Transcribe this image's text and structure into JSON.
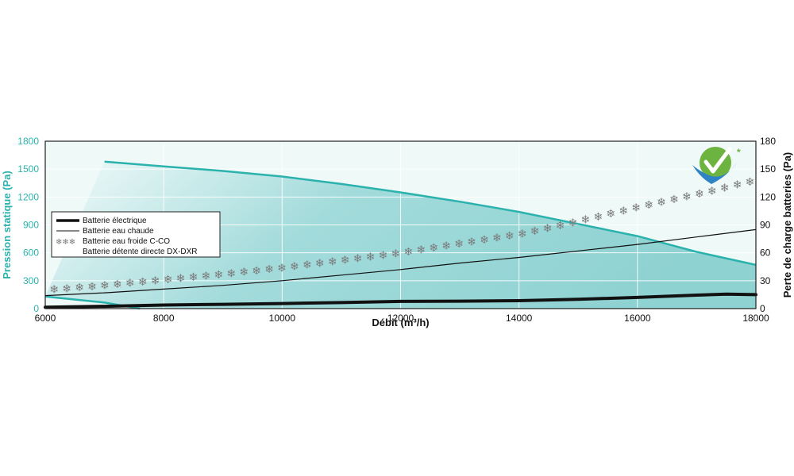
{
  "colors": {
    "left_axis": "#2bb2ad",
    "fill": "#a3dbdb",
    "fill_light": "#eef9f8",
    "black": "#111111",
    "grid": "#ffffff",
    "logo_green": "#6cb33f",
    "logo_blue": "#2e83c5"
  },
  "chart_data": {
    "type": "line",
    "xlabel": "Débit (m³/h)",
    "ylabel_left": "Pression statique (Pa)",
    "ylabel_right": "Perte de charge batteries (Pa)",
    "xlim": [
      6000,
      18000
    ],
    "ylim_left": [
      0,
      1800
    ],
    "ylim_right": [
      0,
      180
    ],
    "x_ticks": [
      "6000",
      "8000",
      "10000",
      "12000",
      "14000",
      "16000",
      "18000"
    ],
    "y_left_ticks": [
      "0",
      "300",
      "600",
      "900",
      "1200",
      "1500",
      "1800"
    ],
    "y_right_ticks": [
      "0",
      "30",
      "60",
      "90",
      "120",
      "150",
      "180"
    ],
    "grid": true,
    "legend_position": "left",
    "legend": [
      {
        "label": "Batterie électrique",
        "style": "thick"
      },
      {
        "label": "Batterie eau chaude",
        "style": "thin"
      },
      {
        "label": "Batterie eau froide C-CO",
        "style": "snowflake"
      },
      {
        "label": "Batterie détente directe DX-DXR",
        "style": "none"
      }
    ],
    "series": [
      {
        "axis": "left",
        "style": "pressure-upper",
        "points": [
          [
            7000,
            1580
          ],
          [
            8000,
            1530
          ],
          [
            9000,
            1480
          ],
          [
            10000,
            1420
          ],
          [
            11000,
            1340
          ],
          [
            12000,
            1250
          ],
          [
            13000,
            1150
          ],
          [
            14000,
            1040
          ],
          [
            15000,
            910
          ],
          [
            16000,
            780
          ],
          [
            17000,
            610
          ],
          [
            18000,
            470
          ]
        ]
      },
      {
        "axis": "left",
        "style": "pressure-lower",
        "points": [
          [
            6000,
            130
          ],
          [
            7000,
            65
          ],
          [
            7600,
            0
          ]
        ]
      },
      {
        "name": "Batterie électrique",
        "axis": "right",
        "style": "thick",
        "points": [
          [
            6000,
            1.5
          ],
          [
            7000,
            2.5
          ],
          [
            8000,
            3.8
          ],
          [
            9000,
            4.6
          ],
          [
            10000,
            5.5
          ],
          [
            11000,
            6.5
          ],
          [
            12000,
            7.8
          ],
          [
            13000,
            8.0
          ],
          [
            14000,
            8.5
          ],
          [
            15000,
            10.0
          ],
          [
            16000,
            12.0
          ],
          [
            17000,
            14.5
          ],
          [
            17500,
            15.5
          ],
          [
            18000,
            15.0
          ]
        ]
      },
      {
        "name": "Batterie eau chaude",
        "axis": "right",
        "style": "thin",
        "points": [
          [
            6000,
            14
          ],
          [
            7000,
            17
          ],
          [
            8000,
            21
          ],
          [
            9000,
            25
          ],
          [
            10000,
            30
          ],
          [
            11000,
            36
          ],
          [
            12000,
            42
          ],
          [
            13000,
            49
          ],
          [
            14000,
            55
          ],
          [
            15000,
            62
          ],
          [
            16000,
            69
          ],
          [
            17000,
            77
          ],
          [
            18000,
            85
          ]
        ]
      },
      {
        "name": "Batterie eau froide C-CO",
        "axis": "right",
        "style": "snowflake",
        "points": [
          [
            6000,
            20
          ],
          [
            7000,
            25
          ],
          [
            8000,
            31
          ],
          [
            9000,
            37
          ],
          [
            10000,
            44
          ],
          [
            11000,
            52
          ],
          [
            12000,
            60
          ],
          [
            13000,
            70
          ],
          [
            14000,
            80
          ],
          [
            15000,
            94
          ],
          [
            16000,
            109
          ],
          [
            17000,
            123
          ],
          [
            18000,
            138
          ]
        ]
      }
    ]
  }
}
